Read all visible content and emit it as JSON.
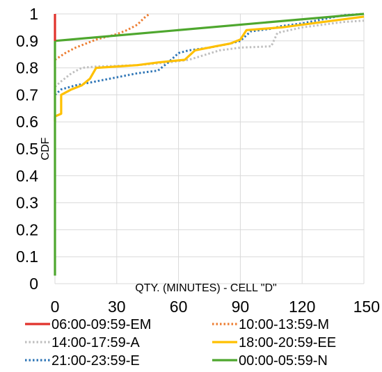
{
  "chart_data": {
    "type": "line",
    "xlabel": "QTY. (MINUTES) - CELL \"D\"",
    "ylabel": "CDF",
    "xlim": [
      0,
      150
    ],
    "ylim": [
      0,
      1
    ],
    "xticks": [
      "0",
      "30",
      "60",
      "90",
      "120",
      "150"
    ],
    "yticks": [
      "0",
      "0.1",
      "0.2",
      "0.3",
      "0.4",
      "0.5",
      "0.6",
      "0.7",
      "0.8",
      "0.9",
      "1"
    ],
    "grid": true,
    "legend_position": "bottom",
    "series": [
      {
        "name": "06:00-09:59-EM",
        "color": "#e0312b",
        "style": "solid",
        "points": [
          [
            0,
            0.9
          ],
          [
            0,
            1.0
          ]
        ]
      },
      {
        "name": "10:00-13:59-M",
        "color": "#ed7d31",
        "style": "dotted",
        "points": [
          [
            0,
            0.83
          ],
          [
            5,
            0.855
          ],
          [
            10,
            0.875
          ],
          [
            15,
            0.89
          ],
          [
            20,
            0.905
          ],
          [
            30,
            0.925
          ],
          [
            35,
            0.94
          ],
          [
            40,
            0.96
          ],
          [
            44,
            0.99
          ],
          [
            46,
            1.0
          ]
        ]
      },
      {
        "name": "14:00-17:59-A",
        "color": "#bfbfbf",
        "style": "dotted",
        "points": [
          [
            0,
            0.73
          ],
          [
            3,
            0.75
          ],
          [
            8,
            0.78
          ],
          [
            13,
            0.8
          ],
          [
            20,
            0.805
          ],
          [
            40,
            0.81
          ],
          [
            55,
            0.82
          ],
          [
            65,
            0.83
          ],
          [
            80,
            0.865
          ],
          [
            90,
            0.875
          ],
          [
            105,
            0.88
          ],
          [
            108,
            0.93
          ],
          [
            120,
            0.95
          ],
          [
            130,
            0.96
          ],
          [
            140,
            0.97
          ],
          [
            150,
            0.975
          ]
        ]
      },
      {
        "name": "18:00-20:59-EE",
        "color": "#ffc000",
        "style": "solid",
        "points": [
          [
            0,
            0.6
          ],
          [
            0,
            0.62
          ],
          [
            3,
            0.63
          ],
          [
            3,
            0.7
          ],
          [
            8,
            0.72
          ],
          [
            13,
            0.735
          ],
          [
            17,
            0.76
          ],
          [
            20,
            0.8
          ],
          [
            40,
            0.81
          ],
          [
            50,
            0.82
          ],
          [
            63,
            0.83
          ],
          [
            68,
            0.865
          ],
          [
            78,
            0.88
          ],
          [
            85,
            0.89
          ],
          [
            90,
            0.905
          ],
          [
            93,
            0.94
          ],
          [
            110,
            0.95
          ],
          [
            125,
            0.965
          ],
          [
            140,
            0.98
          ],
          [
            150,
            0.99
          ]
        ]
      },
      {
        "name": "21:00-23:59-E",
        "color": "#2e75b6",
        "style": "dotted",
        "points": [
          [
            0,
            0.7
          ],
          [
            3,
            0.72
          ],
          [
            10,
            0.735
          ],
          [
            20,
            0.75
          ],
          [
            30,
            0.765
          ],
          [
            40,
            0.78
          ],
          [
            50,
            0.79
          ],
          [
            55,
            0.82
          ],
          [
            60,
            0.855
          ],
          [
            65,
            0.865
          ],
          [
            75,
            0.875
          ],
          [
            85,
            0.89
          ],
          [
            90,
            0.9
          ],
          [
            95,
            0.935
          ],
          [
            105,
            0.945
          ],
          [
            110,
            0.955
          ],
          [
            120,
            0.965
          ],
          [
            130,
            0.98
          ],
          [
            140,
            0.995
          ],
          [
            150,
            1.0
          ]
        ]
      },
      {
        "name": "00:00-05:59-N",
        "color": "#4ea72e",
        "style": "solid",
        "points": [
          [
            0,
            0.03
          ],
          [
            0,
            0.9
          ],
          [
            150,
            1.0
          ]
        ]
      }
    ]
  }
}
